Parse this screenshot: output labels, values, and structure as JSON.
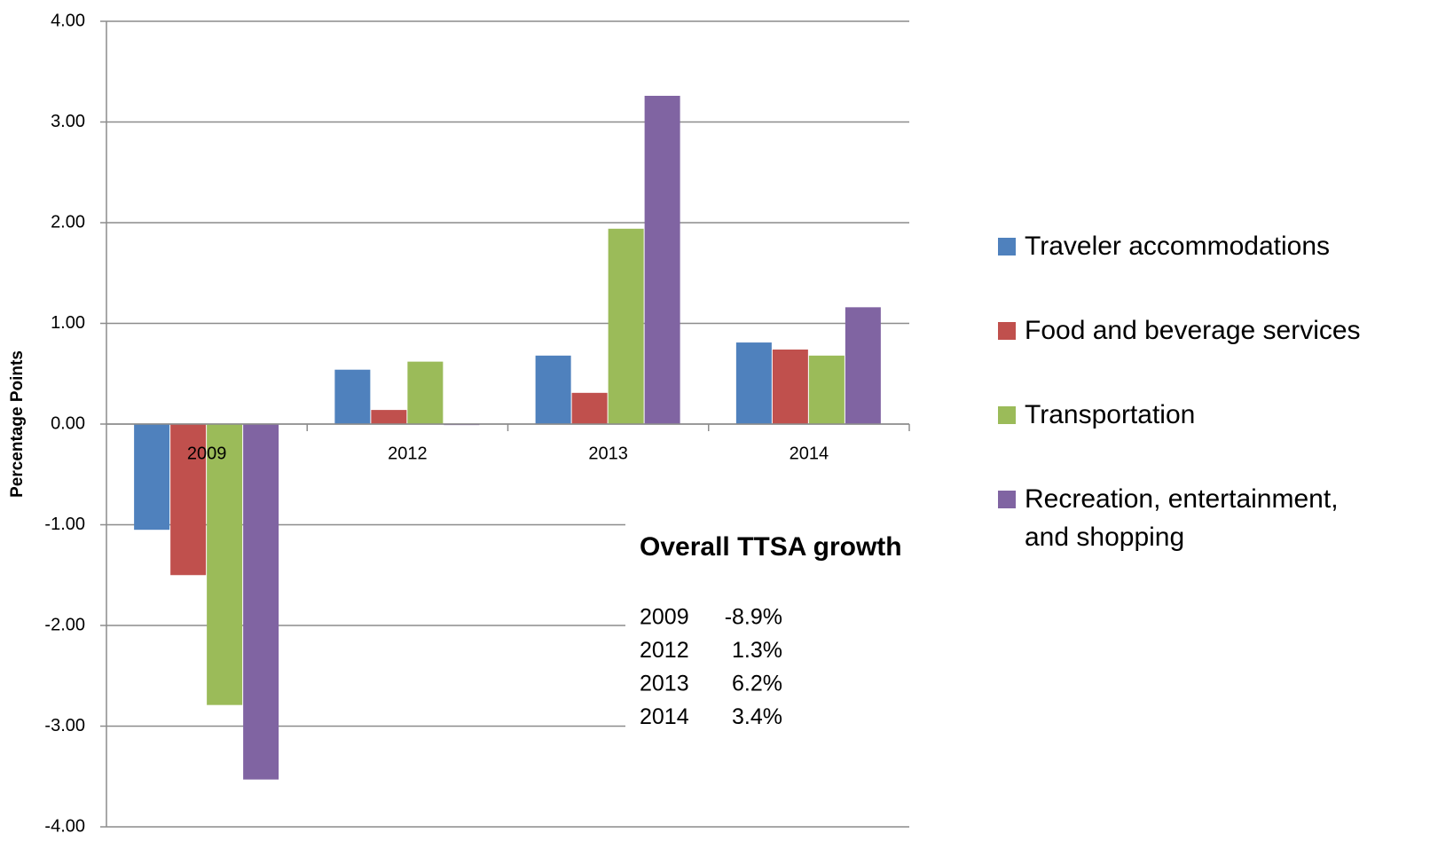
{
  "chart_data": {
    "type": "bar",
    "y_label": "Percentage Points",
    "categories": [
      "2009",
      "2012",
      "2013",
      "2014"
    ],
    "series": [
      {
        "name": "Traveler accommodations",
        "color": "#4f81bd",
        "values": [
          -1.05,
          0.54,
          0.68,
          0.81
        ]
      },
      {
        "name": "Food and beverage services",
        "color": "#c0504d",
        "values": [
          -1.5,
          0.14,
          0.31,
          0.74
        ]
      },
      {
        "name": "Transportation",
        "color": "#9bbb59",
        "values": [
          -2.79,
          0.62,
          1.94,
          0.68
        ]
      },
      {
        "name": "Recreation, entertainment, and shopping",
        "color": "#8064a2",
        "values": [
          -3.53,
          -0.01,
          3.26,
          1.16
        ]
      }
    ],
    "ylim": [
      -4,
      4
    ],
    "yticks": [
      {
        "value": -4,
        "label": "-4.00"
      },
      {
        "value": -3,
        "label": "-3.00"
      },
      {
        "value": -2,
        "label": "-2.00"
      },
      {
        "value": -1,
        "label": "-1.00"
      },
      {
        "value": 0,
        "label": "0.00"
      },
      {
        "value": 1,
        "label": "1.00"
      },
      {
        "value": 2,
        "label": "2.00"
      },
      {
        "value": 3,
        "label": "3.00"
      },
      {
        "value": 4,
        "label": "4.00"
      }
    ],
    "grid": true,
    "legend": "right",
    "annotation": {
      "title": "Overall TTSA growth",
      "rows": [
        [
          "2009",
          "-8.9%"
        ],
        [
          "2012",
          "1.3%"
        ],
        [
          "2013",
          "6.2%"
        ],
        [
          "2014",
          "3.4%"
        ]
      ]
    }
  }
}
